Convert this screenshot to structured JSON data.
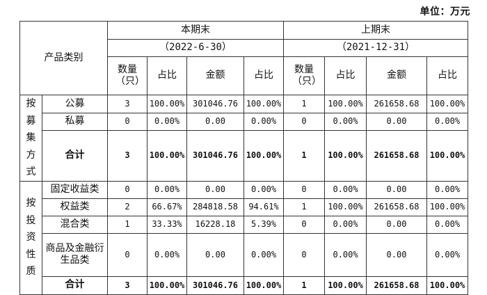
{
  "unit_label": "单位：万元",
  "header": {
    "category_label": "产品类别",
    "current_period": {
      "title": "本期末",
      "date": "（2022-6-30）"
    },
    "prior_period": {
      "title": "上期末",
      "date": "（2021-12-31）"
    },
    "col_count": "数量（只）",
    "col_ratio": "占比",
    "col_amount": "金额",
    "col_ratio2": "占比"
  },
  "groups": [
    {
      "label": "按募集方式",
      "rows": [
        {
          "name": "公募",
          "cur": [
            "3",
            "100.00%",
            "301046.76",
            "100.00%"
          ],
          "pri": [
            "1",
            "100.00%",
            "261658.68",
            "100.00%"
          ]
        },
        {
          "name": "私募",
          "cur": [
            "0",
            "0.00%",
            "0.00",
            "0.00%"
          ],
          "pri": [
            "0",
            "0.00%",
            "0.00",
            "0.00%"
          ]
        }
      ],
      "total": {
        "name": "合计",
        "cur": [
          "3",
          "100.00%",
          "301046.76",
          "100.00%"
        ],
        "pri": [
          "1",
          "100.00%",
          "261658.68",
          "100.00%"
        ]
      }
    },
    {
      "label": "按投资性质",
      "rows": [
        {
          "name": "固定收益类",
          "cur": [
            "0",
            "0.00%",
            "0.00",
            "0.00%"
          ],
          "pri": [
            "0",
            "0.00%",
            "0.00",
            "0.00%"
          ]
        },
        {
          "name": "权益类",
          "cur": [
            "2",
            "66.67%",
            "284818.58",
            "94.61%"
          ],
          "pri": [
            "1",
            "100.00%",
            "261658.68",
            "100.00%"
          ]
        },
        {
          "name": "混合类",
          "cur": [
            "1",
            "33.33%",
            "16228.18",
            "5.39%"
          ],
          "pri": [
            "0",
            "0.00%",
            "0.00",
            "0.00%"
          ]
        },
        {
          "name": "商品及金融衍生品类",
          "cur": [
            "0",
            "0.00%",
            "0.00",
            "0.00%"
          ],
          "pri": [
            "0",
            "0.00%",
            "0.00",
            "0.00%"
          ]
        }
      ],
      "total": {
        "name": "合计",
        "cur": [
          "3",
          "100.00%",
          "301046.76",
          "100.00%"
        ],
        "pri": [
          "1",
          "100.00%",
          "261658.68",
          "100.00%"
        ]
      }
    }
  ]
}
